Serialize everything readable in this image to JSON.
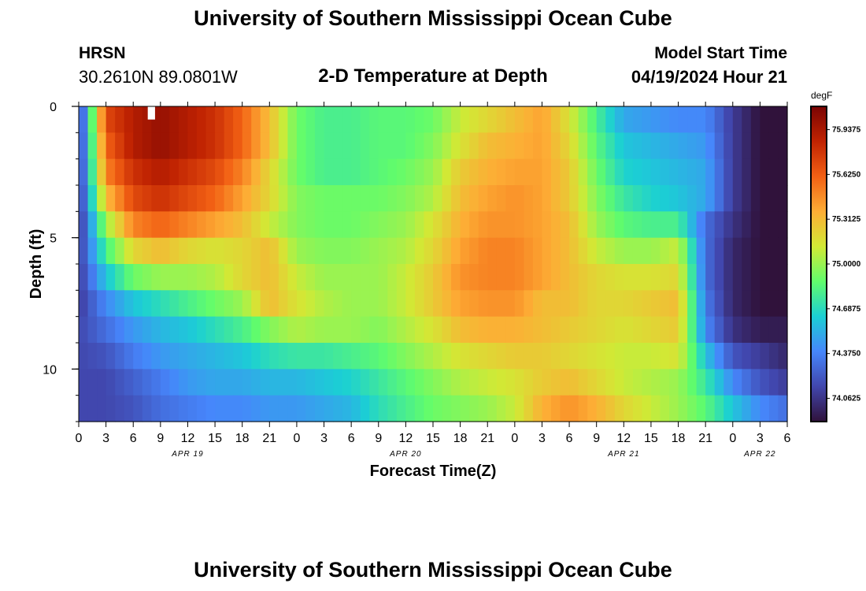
{
  "header": {
    "title": "University of Southern Mississippi Ocean Cube",
    "station": "HRSN",
    "coords": "30.2610N  89.0801W",
    "plot_title": "2-D Temperature at Depth",
    "start_label": "Model Start Time",
    "start_value": "04/19/2024 Hour 21"
  },
  "footer": {
    "title": "University of Southern Mississippi Ocean Cube"
  },
  "colors": {
    "palette": [
      "#30123b",
      "#4146ac",
      "#4686fb",
      "#1bcfd4",
      "#61fc6c",
      "#d2e935",
      "#fdad35",
      "#f26014",
      "#c02302",
      "#7a0403"
    ]
  },
  "chart_data": {
    "type": "heatmap",
    "title": "2-D Temperature at Depth",
    "xlabel": "Forecast Time(Z)",
    "ylabel": "Depth (ft)",
    "x_range_hours": [
      0,
      78
    ],
    "x_ticks": [
      {
        "hour": 0,
        "label": "0"
      },
      {
        "hour": 3,
        "label": "3"
      },
      {
        "hour": 6,
        "label": "6"
      },
      {
        "hour": 9,
        "label": "9"
      },
      {
        "hour": 12,
        "label": "12"
      },
      {
        "hour": 15,
        "label": "15"
      },
      {
        "hour": 18,
        "label": "18"
      },
      {
        "hour": 21,
        "label": "21"
      },
      {
        "hour": 24,
        "label": "0"
      },
      {
        "hour": 27,
        "label": "3"
      },
      {
        "hour": 30,
        "label": "6"
      },
      {
        "hour": 33,
        "label": "9"
      },
      {
        "hour": 36,
        "label": "12"
      },
      {
        "hour": 39,
        "label": "15"
      },
      {
        "hour": 42,
        "label": "18"
      },
      {
        "hour": 45,
        "label": "21"
      },
      {
        "hour": 48,
        "label": "0"
      },
      {
        "hour": 51,
        "label": "3"
      },
      {
        "hour": 54,
        "label": "6"
      },
      {
        "hour": 57,
        "label": "9"
      },
      {
        "hour": 60,
        "label": "12"
      },
      {
        "hour": 63,
        "label": "15"
      },
      {
        "hour": 66,
        "label": "18"
      },
      {
        "hour": 69,
        "label": "21"
      },
      {
        "hour": 72,
        "label": "0"
      },
      {
        "hour": 75,
        "label": "3"
      },
      {
        "hour": 78,
        "label": "6"
      }
    ],
    "date_labels": [
      {
        "hour": 12,
        "label": "APR 19"
      },
      {
        "hour": 36,
        "label": "APR 20"
      },
      {
        "hour": 60,
        "label": "APR 21"
      },
      {
        "hour": 75,
        "label": "APR 22"
      }
    ],
    "y_range_ft": [
      0,
      12
    ],
    "y_ticks": [
      0,
      5,
      10
    ],
    "colorbar": {
      "unit": "degF",
      "range": [
        73.9,
        76.1
      ],
      "labels": [
        "75.9375",
        "75.6250",
        "75.3125",
        "75.0000",
        "74.6875",
        "74.3750",
        "74.0625"
      ]
    },
    "depth_levels_ft": [
      0.5,
      1.5,
      2.5,
      3.5,
      4.5,
      5.5,
      6.5,
      7.5,
      8.5,
      9.5,
      10.5,
      11.5
    ],
    "time_knots_hours": [
      0,
      3,
      6,
      9,
      12,
      15,
      18,
      21,
      24,
      27,
      30,
      33,
      36,
      39,
      42,
      45,
      48,
      51,
      54,
      57,
      60,
      63,
      66,
      69,
      72,
      75,
      78
    ],
    "values_degF": [
      [
        74.05,
        75.7,
        75.9,
        76.0,
        75.9,
        75.8,
        75.6,
        75.3,
        74.9,
        74.8,
        74.8,
        74.85,
        74.85,
        74.9,
        75.1,
        75.2,
        75.3,
        75.4,
        75.15,
        74.8,
        74.5,
        74.45,
        74.4,
        74.4,
        74.1,
        73.9,
        73.9
      ],
      [
        74.05,
        75.6,
        75.9,
        76.0,
        75.9,
        75.8,
        75.6,
        75.3,
        74.9,
        74.8,
        74.8,
        74.85,
        74.85,
        74.95,
        75.15,
        75.3,
        75.35,
        75.4,
        75.2,
        74.85,
        74.6,
        74.55,
        74.5,
        74.45,
        74.1,
        73.9,
        73.9
      ],
      [
        74.05,
        75.5,
        75.8,
        75.9,
        75.8,
        75.7,
        75.5,
        75.2,
        74.9,
        74.8,
        74.8,
        74.85,
        74.9,
        75.0,
        75.25,
        75.35,
        75.4,
        75.4,
        75.25,
        74.9,
        74.65,
        74.6,
        74.55,
        74.5,
        74.1,
        73.9,
        73.9
      ],
      [
        74.05,
        75.3,
        75.7,
        75.8,
        75.7,
        75.6,
        75.4,
        75.2,
        74.95,
        74.9,
        74.9,
        74.9,
        74.95,
        75.05,
        75.3,
        75.4,
        75.45,
        75.4,
        75.25,
        74.95,
        74.75,
        74.65,
        74.6,
        74.5,
        74.1,
        73.9,
        73.9
      ],
      [
        74.05,
        75.0,
        75.5,
        75.6,
        75.5,
        75.4,
        75.3,
        75.1,
        74.95,
        74.9,
        74.9,
        74.95,
        75.0,
        75.15,
        75.35,
        75.45,
        75.45,
        75.4,
        75.3,
        75.0,
        74.85,
        74.8,
        74.8,
        74.3,
        74.05,
        73.9,
        73.9
      ],
      [
        74.1,
        74.8,
        75.2,
        75.3,
        75.2,
        75.15,
        75.2,
        75.3,
        75.0,
        74.95,
        74.95,
        75.0,
        75.05,
        75.2,
        75.4,
        75.5,
        75.5,
        75.4,
        75.3,
        75.1,
        75.0,
        75.0,
        75.1,
        74.3,
        74.0,
        73.9,
        73.9
      ],
      [
        74.1,
        74.6,
        74.9,
        75.0,
        75.0,
        75.05,
        75.2,
        75.3,
        75.1,
        75.0,
        75.0,
        75.0,
        75.1,
        75.25,
        75.45,
        75.5,
        75.5,
        75.4,
        75.3,
        75.2,
        75.15,
        75.15,
        75.2,
        74.3,
        74.0,
        73.9,
        73.9
      ],
      [
        74.1,
        74.4,
        74.6,
        74.7,
        74.8,
        74.9,
        75.0,
        75.3,
        75.15,
        75.05,
        75.0,
        75.0,
        75.1,
        75.25,
        75.4,
        75.45,
        75.45,
        75.3,
        75.3,
        75.2,
        75.2,
        75.25,
        75.3,
        74.35,
        74.0,
        73.9,
        73.9
      ],
      [
        74.15,
        74.3,
        74.45,
        74.55,
        74.6,
        74.7,
        74.8,
        74.95,
        75.05,
        75.0,
        75.0,
        74.95,
        75.05,
        75.15,
        75.3,
        75.35,
        75.35,
        75.3,
        75.25,
        75.2,
        75.15,
        75.2,
        75.25,
        74.4,
        74.05,
        73.95,
        73.95
      ],
      [
        74.15,
        74.2,
        74.35,
        74.45,
        74.5,
        74.55,
        74.6,
        74.7,
        74.75,
        74.75,
        74.8,
        74.85,
        74.95,
        75.05,
        75.15,
        75.2,
        75.25,
        75.25,
        75.2,
        75.15,
        75.1,
        75.1,
        75.15,
        74.6,
        74.2,
        74.1,
        74.0
      ],
      [
        74.15,
        74.15,
        74.25,
        74.35,
        74.45,
        74.5,
        74.5,
        74.55,
        74.55,
        74.6,
        74.65,
        74.75,
        74.85,
        74.95,
        75.05,
        75.1,
        75.15,
        75.25,
        75.3,
        75.2,
        75.1,
        75.05,
        75.0,
        74.75,
        74.4,
        74.2,
        74.1
      ],
      [
        74.15,
        74.15,
        74.2,
        74.3,
        74.35,
        74.4,
        74.4,
        74.45,
        74.45,
        74.5,
        74.55,
        74.7,
        74.8,
        74.9,
        74.95,
        75.0,
        75.1,
        75.35,
        75.45,
        75.35,
        75.2,
        75.1,
        75.0,
        74.85,
        74.6,
        74.4,
        74.3
      ]
    ]
  }
}
